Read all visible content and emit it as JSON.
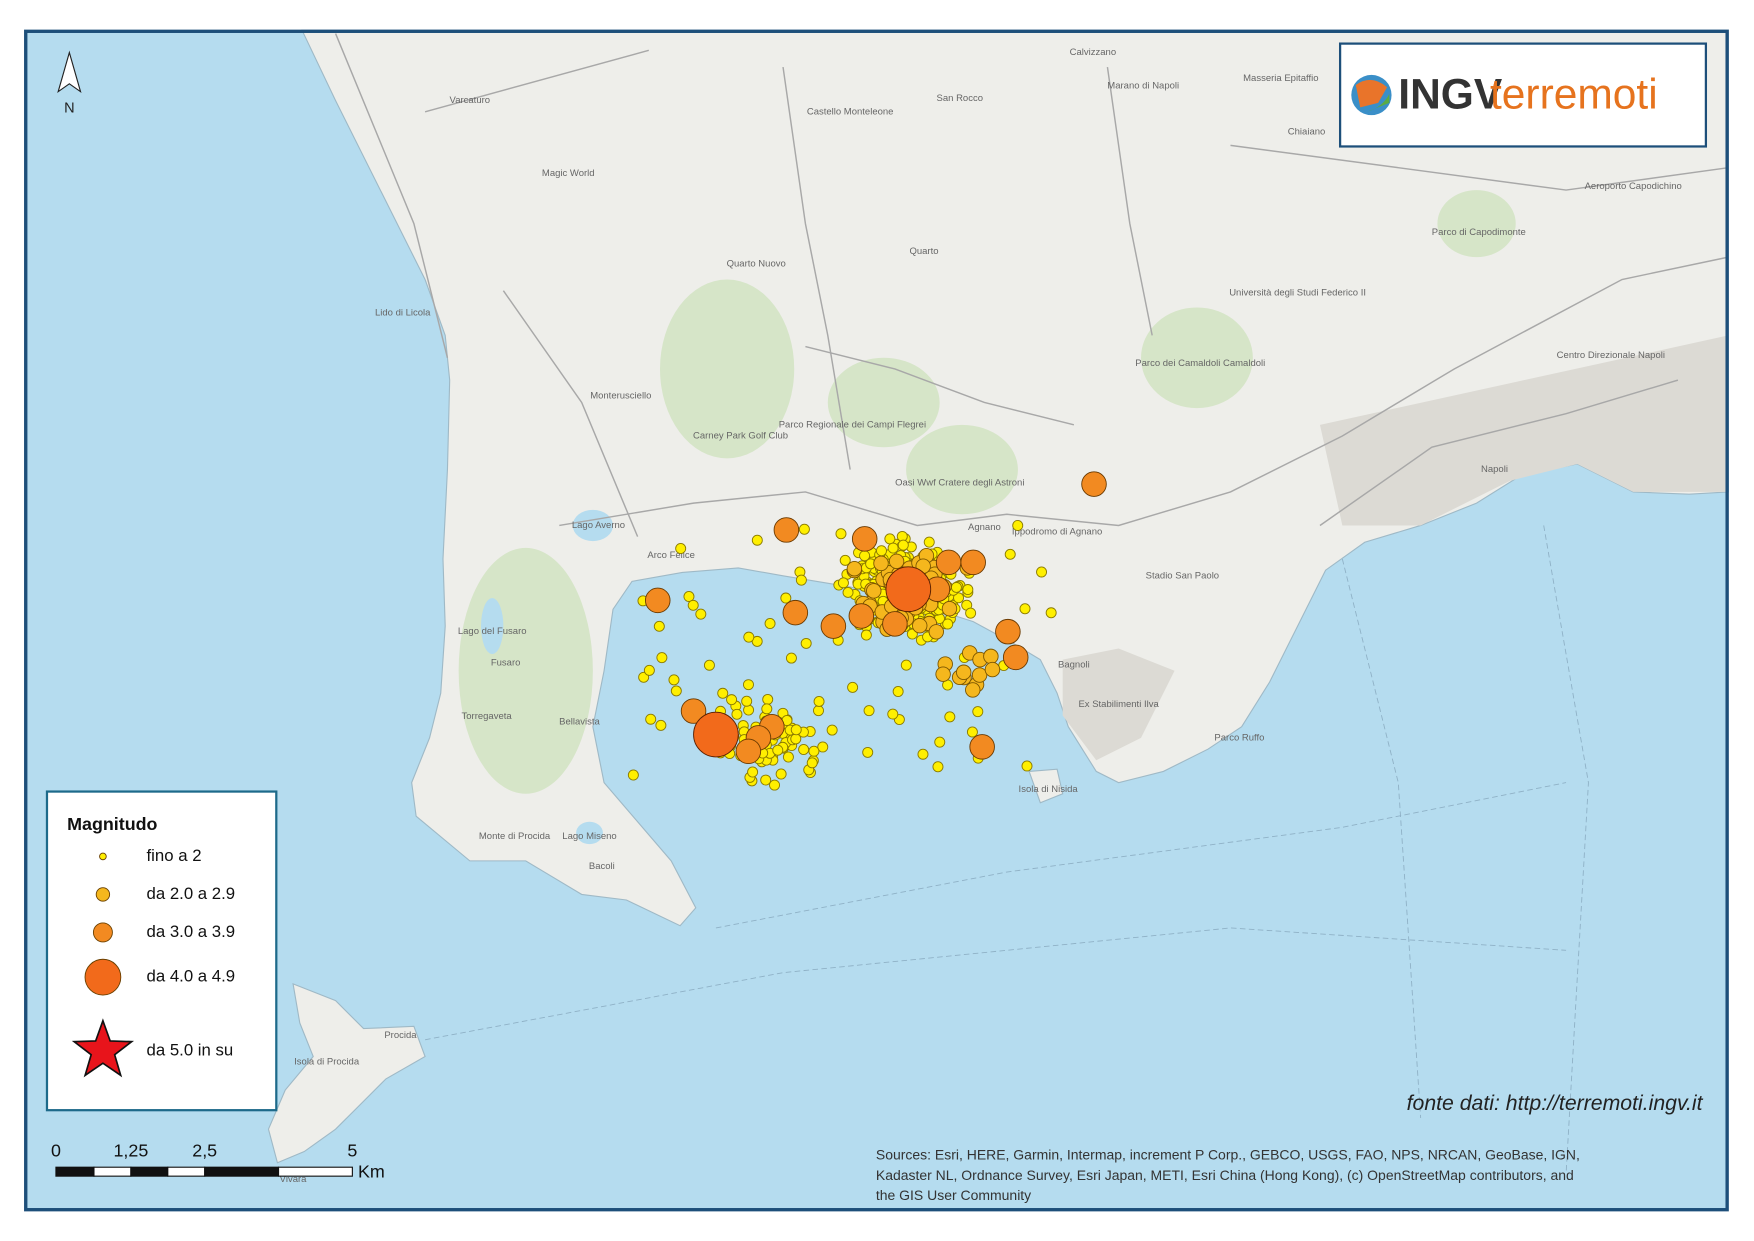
{
  "map": {
    "north": "N",
    "logo": {
      "brand": "INGV",
      "product": "terremoti"
    },
    "legend": {
      "title": "Magnitudo",
      "items": [
        "fino a 2",
        "da 2.0 a 2.9",
        "da 3.0 a 3.9",
        "da 4.0 a 4.9",
        "da 5.0 in su"
      ]
    },
    "scale_bar": {
      "labels": [
        "0",
        "1,25",
        "2,5",
        "5"
      ],
      "unit": "Km"
    },
    "source_note": "fonte dati: http://terremoti.ingv.it",
    "attribution_lines": [
      "Sources: Esri, HERE, Garmin, Intermap, increment P Corp., GEBCO, USGS, FAO, NPS, NRCAN, GeoBase, IGN,",
      "Kadaster NL, Ordnance Survey, Esri Japan, METI, Esri China (Hong Kong), (c) OpenStreetMap contributors, and",
      "the GIS User Community"
    ],
    "place_labels": [
      "Varcaturo",
      "Calvizzano",
      "Marano di Napoli",
      "Masseria Epitaffio",
      "Castello Monteleone",
      "San Rocco",
      "Chiaiano",
      "Quarto",
      "Quarto Nuovo",
      "Lido di Licola",
      "Monterusciello",
      "Parco Regionale dei Campi Flegrei",
      "Carney Park Golf Club",
      "Oasi Wwf Cratere degli Astroni",
      "Parco dei Camaldoli Camaldoli",
      "Università degli Studi Federico II",
      "Parco di Capodimonte",
      "Aeroporto Capodichino",
      "Napoli",
      "Lago Averno",
      "Arco Felice",
      "Agnano",
      "Ippodromo di Agnano",
      "Lago del Fusaro",
      "Fusaro",
      "Torregaveta",
      "Bellavista",
      "Bagnoli",
      "Ex Stabilimenti Ilva",
      "Monte di Procida",
      "Bacoli",
      "Lago Miseno",
      "Isola di Nisida",
      "Parco Ruffo",
      "Procida",
      "Isola di Procida",
      "Stadio San Paolo",
      "Centro Direzionale Napoli",
      "Vivara",
      "Magic World"
    ]
  }
}
